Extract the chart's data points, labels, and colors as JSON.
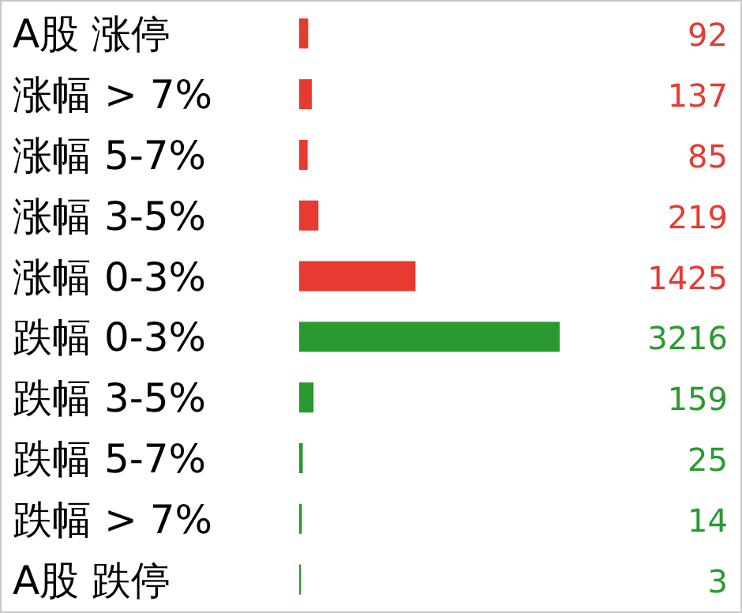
{
  "chart_data": {
    "type": "bar",
    "orientation": "horizontal",
    "tick_labels": "y",
    "data_labels": true,
    "categories": [
      "A股 涨停",
      "涨幅 > 7%",
      "涨幅 5-7%",
      "涨幅 3-5%",
      "涨幅 0-3%",
      "跌幅 0-3%",
      "跌幅 3-5%",
      "跌幅 5-7%",
      "跌幅 > 7%",
      "A股 跌停"
    ],
    "values": [
      92,
      137,
      85,
      219,
      1425,
      3216,
      159,
      25,
      14,
      3
    ],
    "colors": [
      "#e83a30",
      "#e83a30",
      "#e83a30",
      "#e83a30",
      "#e83a30",
      "#2a9a30",
      "#2a9a30",
      "#2a9a30",
      "#2a9a30",
      "#2a9a30"
    ]
  }
}
